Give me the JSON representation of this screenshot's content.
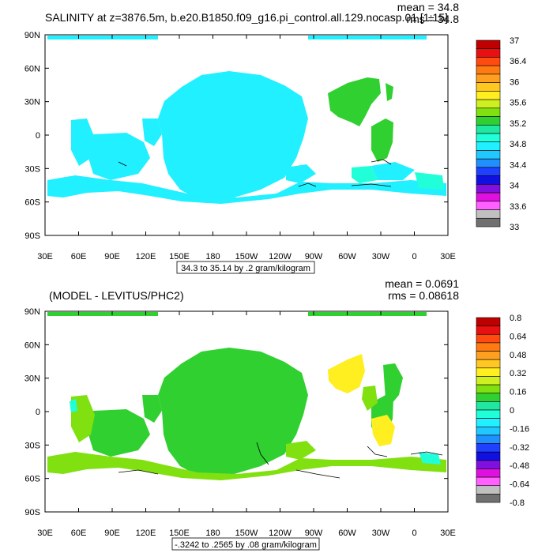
{
  "panels": [
    {
      "title": "SALINITY at z=3876.5m, b.e20.B1850.f09_g16.pi_control.all.129.nocasp.01 [1:15]",
      "stats": {
        "mean": "mean = 34.8",
        "rms": "rms = 34.8"
      },
      "range_label": "34.3 to 35.14 by .2 gram/kilogram",
      "lat_labels": [
        "90N",
        "60N",
        "30N",
        "0",
        "30S",
        "60S",
        "90S"
      ],
      "lon_labels": [
        "30E",
        "60E",
        "90E",
        "120E",
        "150E",
        "180",
        "150W",
        "120W",
        "90W",
        "60W",
        "30W",
        "0",
        "30E"
      ],
      "colorbar": {
        "labels": [
          "37",
          "36.4",
          "36",
          "35.6",
          "35.2",
          "34.8",
          "34.4",
          "34",
          "33.6",
          "33"
        ],
        "colors": [
          "#c00000",
          "#e81010",
          "#ff4a10",
          "#ff7a10",
          "#ff9f20",
          "#ffc820",
          "#ffee20",
          "#cff020",
          "#80e010",
          "#30d030",
          "#20e8a0",
          "#20ffd8",
          "#20f0ff",
          "#20c8ff",
          "#2090ff",
          "#2040ff",
          "#1010e0",
          "#8010e0",
          "#e010e0",
          "#ff60ff",
          "#c0c0c0",
          "#707070"
        ]
      }
    },
    {
      "title": "(MODEL - LEVITUS/PHC2)",
      "stats": {
        "mean": "mean = 0.0691",
        "rms": "rms = 0.08618"
      },
      "range_label": "-.3242 to .2565 by .08 gram/kilogram",
      "lat_labels": [
        "90N",
        "60N",
        "30N",
        "0",
        "30S",
        "60S",
        "90S"
      ],
      "lon_labels": [
        "30E",
        "60E",
        "90E",
        "120E",
        "150E",
        "180",
        "150W",
        "120W",
        "90W",
        "60W",
        "30W",
        "0",
        "30E"
      ],
      "colorbar": {
        "labels": [
          "0.8",
          "0.64",
          "0.48",
          "0.32",
          "0.16",
          "0",
          "-0.16",
          "-0.32",
          "-0.48",
          "-0.64",
          "-0.8"
        ],
        "colors": [
          "#c00000",
          "#e81010",
          "#ff4a10",
          "#ff7a10",
          "#ff9f20",
          "#ffc820",
          "#ffee20",
          "#cff020",
          "#80e010",
          "#30d030",
          "#20e8a0",
          "#20ffd8",
          "#20f0ff",
          "#20c8ff",
          "#2090ff",
          "#2040ff",
          "#1010e0",
          "#8010e0",
          "#e010e0",
          "#ff60ff",
          "#c0c0c0",
          "#707070"
        ]
      }
    }
  ],
  "chart_data": [
    {
      "type": "heatmap",
      "title": "SALINITY at z=3876.5m, b.e20.B1850.f09_g16.pi_control.all.129.nocasp.01 [1:15]",
      "variable": "SALINITY",
      "units": "gram/kilogram",
      "x_range": [
        "30E",
        "30E"
      ],
      "y_range": [
        "90S",
        "90N"
      ],
      "contour_min": 34.3,
      "contour_max": 35.14,
      "contour_interval": 0.2,
      "mean": 34.8,
      "rms": 34.8,
      "colorbar_ticks": [
        37,
        36.4,
        36,
        35.6,
        35.2,
        34.8,
        34.4,
        34,
        33.6,
        33
      ],
      "dominant_fill": {
        "Pacific": "cyan (34.6-34.8)",
        "Atlantic": "green (35.0-35.2)",
        "Southern Ocean": "cyan"
      }
    },
    {
      "type": "heatmap",
      "title": "(MODEL - LEVITUS/PHC2)",
      "units": "gram/kilogram",
      "x_range": [
        "30E",
        "30E"
      ],
      "y_range": [
        "90S",
        "90N"
      ],
      "contour_min": -0.3242,
      "contour_max": 0.2565,
      "contour_interval": 0.08,
      "mean": 0.0691,
      "rms": 0.08618,
      "colorbar_ticks": [
        0.8,
        0.64,
        0.48,
        0.32,
        0.16,
        0,
        -0.16,
        -0.32,
        -0.48,
        -0.64,
        -0.8
      ],
      "dominant_fill": {
        "Pacific": "green (0.0-0.16)",
        "North Atlantic": "yellow (0.16-0.32)",
        "Southern Ocean": "light green"
      }
    }
  ]
}
